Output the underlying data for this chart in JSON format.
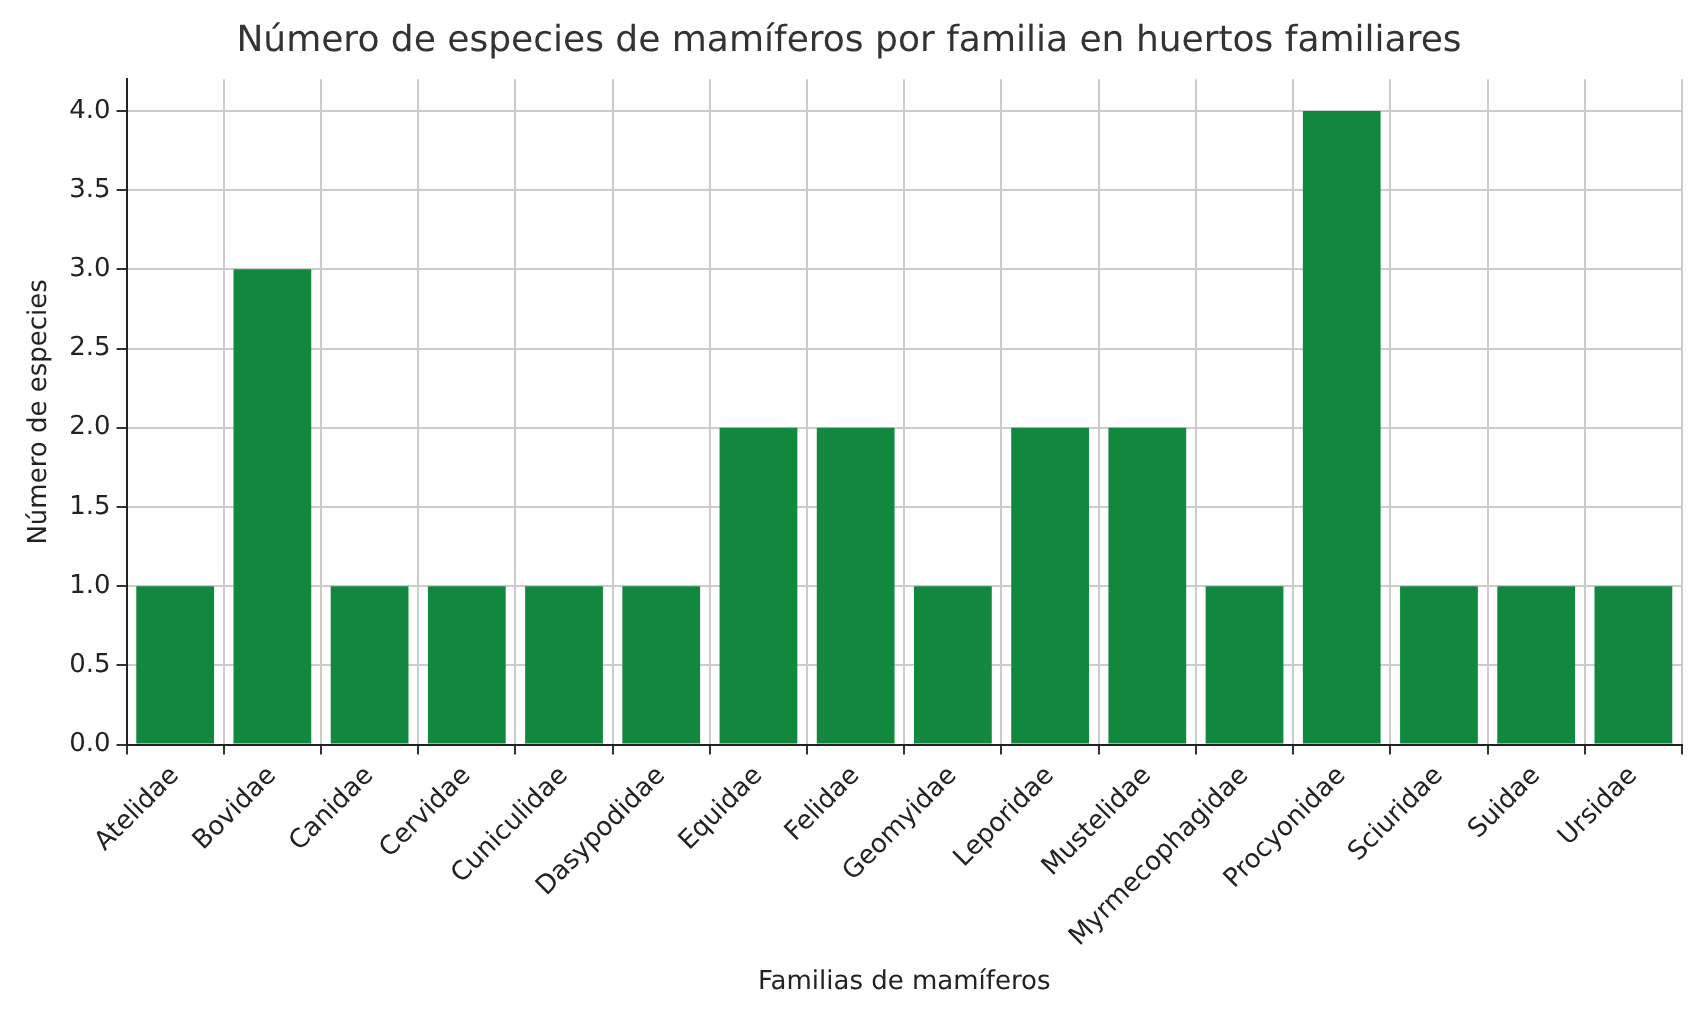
{
  "chart_data": {
    "type": "bar",
    "title": "Número de especies de mamíferos por familia en huertos familiares",
    "xlabel": "Familias de mamíferos",
    "ylabel": "Número de especies",
    "categories": [
      "Atelidae",
      "Bovidae",
      "Canidae",
      "Cervidae",
      "Cuniculidae",
      "Dasypodidae",
      "Equidae",
      "Felidae",
      "Geomyidae",
      "Leporidae",
      "Mustelidae",
      "Myrmecophagidae",
      "Procyonidae",
      "Sciuridae",
      "Suidae",
      "Ursidae"
    ],
    "values": [
      1,
      3,
      1,
      1,
      1,
      1,
      2,
      2,
      1,
      2,
      2,
      1,
      4,
      1,
      1,
      1
    ],
    "color": "#12883f",
    "ylim": [
      0,
      4.2
    ],
    "yticks": [
      {
        "value": 0,
        "label": "0.0"
      },
      {
        "value": 0.5,
        "label": "0.5"
      },
      {
        "value": 1,
        "label": "1.0"
      },
      {
        "value": 1.5,
        "label": "1.5"
      },
      {
        "value": 2,
        "label": "2.0"
      },
      {
        "value": 2.5,
        "label": "2.5"
      },
      {
        "value": 3,
        "label": "3.0"
      },
      {
        "value": 3.5,
        "label": "3.5"
      },
      {
        "value": 4,
        "label": "4.0"
      }
    ],
    "grid": true
  }
}
